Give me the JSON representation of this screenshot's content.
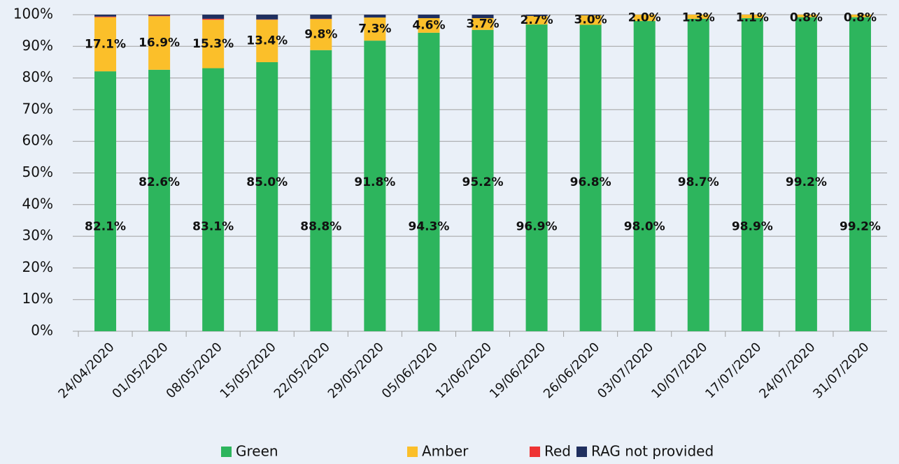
{
  "chart_data": {
    "type": "stacked-bar",
    "categories": [
      "24/04/2020",
      "01/05/2020",
      "08/05/2020",
      "15/05/2020",
      "22/05/2020",
      "29/05/2020",
      "05/06/2020",
      "12/06/2020",
      "19/06/2020",
      "26/06/2020",
      "03/07/2020",
      "10/07/2020",
      "17/07/2020",
      "24/07/2020",
      "31/07/2020"
    ],
    "series": [
      {
        "name": "Green",
        "color": "#2db55d",
        "values": [
          82.1,
          82.6,
          83.1,
          85.0,
          88.8,
          91.8,
          94.3,
          95.2,
          96.9,
          96.8,
          98.0,
          98.7,
          98.9,
          99.2,
          99.2
        ],
        "value_labels": [
          "82.1%",
          "82.6%",
          "83.1%",
          "85.0%",
          "88.8%",
          "91.8%",
          "94.3%",
          "95.2%",
          "96.9%",
          "96.8%",
          "98.0%",
          "98.7%",
          "98.9%",
          "99.2%",
          "99.2%"
        ]
      },
      {
        "name": "Amber",
        "color": "#fbbf2a",
        "values": [
          17.1,
          16.9,
          15.3,
          13.4,
          9.8,
          7.3,
          4.6,
          3.7,
          2.7,
          3.0,
          2.0,
          1.3,
          1.1,
          0.8,
          0.8
        ],
        "value_labels": [
          "17.1%",
          "16.9%",
          "15.3%",
          "13.4%",
          "9.8%",
          "7.3%",
          "4.6%",
          "3.7%",
          "2.7%",
          "3.0%",
          "2.0%",
          "1.3%",
          "1.1%",
          "0.8%",
          "0.8%"
        ]
      },
      {
        "name": "Red",
        "color": "#ee3334",
        "values": [
          0.2,
          0.2,
          0.3,
          0.1,
          0.1,
          0,
          0,
          0,
          0,
          0,
          0,
          0,
          0,
          0,
          0
        ]
      },
      {
        "name": "RAG not provided",
        "color": "#1f2f5f",
        "values": [
          0.6,
          0.3,
          1.3,
          1.5,
          1.3,
          0.9,
          1.1,
          1.1,
          0.4,
          0.2,
          0,
          0,
          0,
          0,
          0
        ]
      }
    ],
    "ylim": [
      0,
      100
    ],
    "yticks": [
      {
        "value": 0,
        "label": "0%"
      },
      {
        "value": 10,
        "label": "10%"
      },
      {
        "value": 20,
        "label": "20%"
      },
      {
        "value": 30,
        "label": "30%"
      },
      {
        "value": 40,
        "label": "40%"
      },
      {
        "value": 50,
        "label": "50%"
      },
      {
        "value": 60,
        "label": "60%"
      },
      {
        "value": 70,
        "label": "70%"
      },
      {
        "value": 80,
        "label": "80%"
      },
      {
        "value": 90,
        "label": "90%"
      },
      {
        "value": 100,
        "label": "100%"
      }
    ],
    "grid": true,
    "legend": "bottom"
  }
}
